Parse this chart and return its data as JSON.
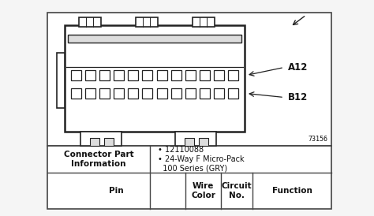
{
  "bg_color": "#f5f5f5",
  "white": "#ffffff",
  "dark": "#222222",
  "mid_gray": "#999999",
  "light_gray": "#dddddd",
  "diagram_label_A12": "A12",
  "diagram_label_B12": "B12",
  "diagram_number": "73156",
  "connector_part_label": "Connector Part\nInformation",
  "bullet1": "• 12110088",
  "bullet2": "• 24-Way F Micro-Pack\n  100 Series (GRY)",
  "col_pin": "Pin",
  "col_wire": "Wire\nColor",
  "col_circuit": "Circuit\nNo.",
  "col_function": "Function",
  "lc": "#444444",
  "tc": "#111111",
  "n_pins_per_row": 12
}
